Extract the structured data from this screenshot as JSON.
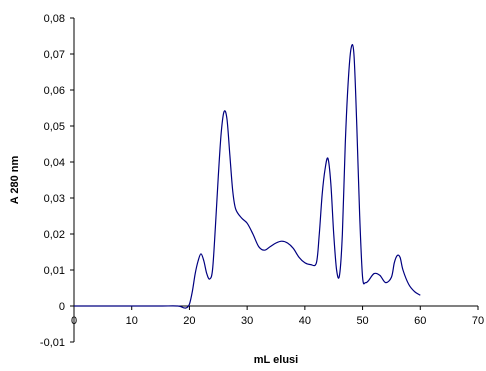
{
  "chart_data": {
    "type": "line",
    "title": "",
    "xlabel": "mL elusi",
    "ylabel": "A 280 nm",
    "xlim": [
      0,
      70
    ],
    "ylim": [
      -0.01,
      0.08
    ],
    "x_ticks": [
      0,
      10,
      20,
      30,
      40,
      50,
      60,
      70
    ],
    "x_tick_labels": [
      "0",
      "10",
      "20",
      "30",
      "40",
      "50",
      "60",
      "70"
    ],
    "y_ticks": [
      -0.01,
      0,
      0.01,
      0.02,
      0.03,
      0.04,
      0.05,
      0.06,
      0.07,
      0.08
    ],
    "y_tick_labels": [
      "-0,01",
      "0",
      "0,01",
      "0,02",
      "0,03",
      "0,04",
      "0,05",
      "0,06",
      "0,07",
      "0,08"
    ],
    "grid": false,
    "legend": "none",
    "line_color": "#000080",
    "series": [
      {
        "x": [
          0,
          5,
          10,
          15,
          18,
          19,
          19.5,
          20,
          20.5,
          21,
          21.5,
          22,
          22.5,
          23,
          23.5,
          24,
          24.5,
          25,
          25.5,
          26,
          26.5,
          27,
          27.5,
          28,
          29,
          30,
          31,
          32,
          33,
          34,
          35,
          36,
          37,
          38,
          39,
          40,
          41,
          42,
          42.5,
          43,
          43.5,
          44,
          44.5,
          45,
          45.5,
          46,
          46.5,
          47,
          47.5,
          48,
          48.5,
          49,
          49.5,
          50,
          50.5,
          51,
          52,
          53,
          54,
          55,
          55.5,
          56,
          56.5,
          57,
          58,
          59,
          60
        ],
        "y": [
          0,
          0,
          0,
          0,
          0,
          -0.0005,
          -0.0005,
          0.0005,
          0.004,
          0.009,
          0.0125,
          0.0145,
          0.0125,
          0.009,
          0.0075,
          0.01,
          0.022,
          0.036,
          0.048,
          0.054,
          0.052,
          0.042,
          0.032,
          0.027,
          0.0245,
          0.023,
          0.02,
          0.0165,
          0.0155,
          0.0165,
          0.0175,
          0.018,
          0.0175,
          0.016,
          0.0135,
          0.012,
          0.0115,
          0.012,
          0.02,
          0.031,
          0.038,
          0.041,
          0.034,
          0.02,
          0.01,
          0.0085,
          0.02,
          0.045,
          0.062,
          0.0715,
          0.07,
          0.05,
          0.025,
          0.008,
          0.0065,
          0.007,
          0.009,
          0.0085,
          0.0065,
          0.008,
          0.012,
          0.014,
          0.0135,
          0.01,
          0.006,
          0.004,
          0.003
        ]
      }
    ]
  }
}
